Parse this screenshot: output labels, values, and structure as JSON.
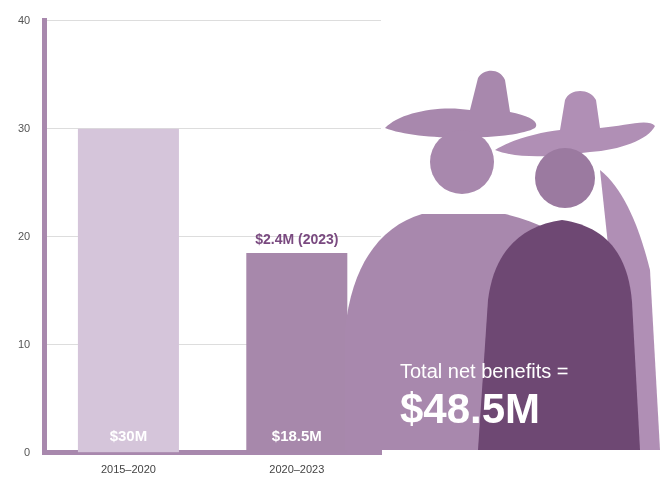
{
  "chart_data": {
    "type": "bar",
    "categories": [
      "2015–2020",
      "2020–2023"
    ],
    "values": [
      30,
      18.5
    ],
    "colors": [
      "#d5c5da",
      "#a788ab"
    ],
    "ylim": [
      0,
      40
    ],
    "yticks": [
      0,
      10,
      20,
      30,
      40
    ],
    "grid": true,
    "data_labels": true,
    "value_labels": [
      "$30M",
      "$18.5M"
    ],
    "annotations": [
      {
        "text": "$2.4M (2023)",
        "category": "2020–2023"
      },
      {
        "text": "Total net benefits ="
      },
      {
        "text": "$48.5M"
      }
    ]
  }
}
